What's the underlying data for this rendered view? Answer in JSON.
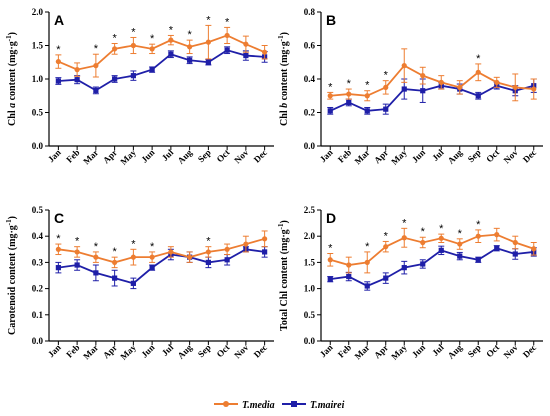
{
  "colors": {
    "media": "#ED7D31",
    "mairei": "#1F1FA8",
    "axis": "#000000"
  },
  "legend": [
    "T.media",
    "T.mairei"
  ],
  "chart_data": [
    {
      "type": "line",
      "panel": "A",
      "ylabel_parts": [
        "Chl ",
        "a",
        " content (mg·g",
        "-1",
        ")"
      ],
      "ylim": [
        0,
        2.0
      ],
      "yticks": [
        "0.0",
        "0.5",
        "1.0",
        "1.5",
        "2.0"
      ],
      "ytick_values": [
        0,
        0.5,
        1.0,
        1.5,
        2.0
      ],
      "categories": [
        "Jan",
        "Feb",
        "Mar",
        "Apr",
        "May",
        "Jun",
        "Jul",
        "Aug",
        "Sep",
        "Oct",
        "Nov",
        "Dec"
      ],
      "series": [
        {
          "name": "T.media",
          "values": [
            1.26,
            1.14,
            1.2,
            1.45,
            1.5,
            1.45,
            1.58,
            1.48,
            1.55,
            1.65,
            1.52,
            1.4
          ],
          "err": [
            0.1,
            0.1,
            0.17,
            0.08,
            0.12,
            0.07,
            0.07,
            0.1,
            0.25,
            0.12,
            0.12,
            0.1
          ]
        },
        {
          "name": "T.mairei",
          "values": [
            0.97,
            0.99,
            0.83,
            1.0,
            1.05,
            1.14,
            1.37,
            1.28,
            1.25,
            1.43,
            1.35,
            1.33
          ],
          "err": [
            0.05,
            0.06,
            0.05,
            0.05,
            0.07,
            0.04,
            0.05,
            0.05,
            0.04,
            0.05,
            0.07,
            0.08
          ]
        }
      ],
      "significance": [
        "*",
        "",
        "*",
        "*",
        "*",
        "*",
        "*",
        "*",
        "*",
        "*",
        "",
        ""
      ]
    },
    {
      "type": "line",
      "panel": "B",
      "ylabel_parts": [
        "Chl ",
        "b",
        " content (mg·g",
        "-1",
        ")"
      ],
      "ylim": [
        0,
        0.8
      ],
      "yticks": [
        "0.0",
        "0.2",
        "0.4",
        "0.6",
        "0.8"
      ],
      "ytick_values": [
        0,
        0.2,
        0.4,
        0.6,
        0.8
      ],
      "categories": [
        "Jan",
        "Feb",
        "Mar",
        "Apr",
        "May",
        "Jun",
        "Jul",
        "Aug",
        "Sep",
        "Oct",
        "Nov",
        "Dec"
      ],
      "series": [
        {
          "name": "T.media",
          "values": [
            0.3,
            0.31,
            0.3,
            0.35,
            0.48,
            0.42,
            0.38,
            0.35,
            0.44,
            0.38,
            0.35,
            0.34
          ],
          "err": [
            0.02,
            0.03,
            0.03,
            0.04,
            0.1,
            0.05,
            0.04,
            0.04,
            0.05,
            0.03,
            0.08,
            0.06
          ]
        },
        {
          "name": "T.mairei",
          "values": [
            0.21,
            0.26,
            0.21,
            0.22,
            0.34,
            0.33,
            0.36,
            0.34,
            0.3,
            0.36,
            0.33,
            0.36
          ],
          "err": [
            0.02,
            0.02,
            0.02,
            0.03,
            0.06,
            0.07,
            0.02,
            0.03,
            0.02,
            0.02,
            0.03,
            0.04
          ]
        }
      ],
      "significance": [
        "*",
        "*",
        "*",
        "*",
        "",
        "",
        "",
        "",
        "*",
        "",
        "",
        ""
      ]
    },
    {
      "type": "line",
      "panel": "C",
      "ylabel_parts": [
        "Carotenoid content (mg·g",
        "-1",
        ")"
      ],
      "ylim": [
        0,
        0.5
      ],
      "yticks": [
        "0.0",
        "0.1",
        "0.2",
        "0.3",
        "0.4",
        "0.5"
      ],
      "ytick_values": [
        0,
        0.1,
        0.2,
        0.3,
        0.4,
        0.5
      ],
      "categories": [
        "Jan",
        "Feb",
        "Mar",
        "Apr",
        "May",
        "Jun",
        "Jul",
        "Aug",
        "Sep",
        "Oct",
        "Nov",
        "Dec"
      ],
      "series": [
        {
          "name": "T.media",
          "values": [
            0.35,
            0.34,
            0.32,
            0.3,
            0.32,
            0.32,
            0.34,
            0.32,
            0.34,
            0.35,
            0.37,
            0.39
          ],
          "err": [
            0.02,
            0.02,
            0.02,
            0.02,
            0.03,
            0.02,
            0.02,
            0.02,
            0.02,
            0.02,
            0.03,
            0.03
          ]
        },
        {
          "name": "T.mairei",
          "values": [
            0.28,
            0.29,
            0.26,
            0.24,
            0.22,
            0.28,
            0.33,
            0.32,
            0.3,
            0.31,
            0.35,
            0.34
          ],
          "err": [
            0.02,
            0.02,
            0.03,
            0.03,
            0.02,
            0.01,
            0.02,
            0.02,
            0.02,
            0.02,
            0.01,
            0.02
          ]
        }
      ],
      "significance": [
        "*",
        "*",
        "*",
        "*",
        "*",
        "*",
        "",
        "",
        "*",
        "",
        "",
        ""
      ]
    },
    {
      "type": "line",
      "panel": "D",
      "ylabel_parts": [
        "Total Chl content (mg·g",
        "-1",
        ")"
      ],
      "ylim": [
        0,
        2.5
      ],
      "yticks": [
        "0.0",
        "0.5",
        "1.0",
        "1.5",
        "2.0",
        "2.5"
      ],
      "ytick_values": [
        0,
        0.5,
        1.0,
        1.5,
        2.0,
        2.5
      ],
      "categories": [
        "Jan",
        "Feb",
        "Mar",
        "Apr",
        "May",
        "Jun",
        "Jul",
        "Aug",
        "Sep",
        "Oct",
        "Nov",
        "Dec"
      ],
      "series": [
        {
          "name": "T.media",
          "values": [
            1.55,
            1.45,
            1.5,
            1.8,
            1.97,
            1.88,
            1.96,
            1.85,
            2.0,
            2.03,
            1.88,
            1.76
          ],
          "err": [
            0.12,
            0.15,
            0.2,
            0.1,
            0.18,
            0.1,
            0.08,
            0.1,
            0.12,
            0.12,
            0.12,
            0.12
          ]
        },
        {
          "name": "T.mairei",
          "values": [
            1.18,
            1.23,
            1.05,
            1.2,
            1.4,
            1.47,
            1.73,
            1.62,
            1.55,
            1.77,
            1.66,
            1.7
          ],
          "err": [
            0.05,
            0.08,
            0.08,
            0.1,
            0.12,
            0.08,
            0.08,
            0.07,
            0.05,
            0.05,
            0.1,
            0.08
          ]
        }
      ],
      "significance": [
        "*",
        "",
        "*",
        "*",
        "*",
        "*",
        "*",
        "*",
        "*",
        "",
        "",
        ""
      ]
    }
  ]
}
